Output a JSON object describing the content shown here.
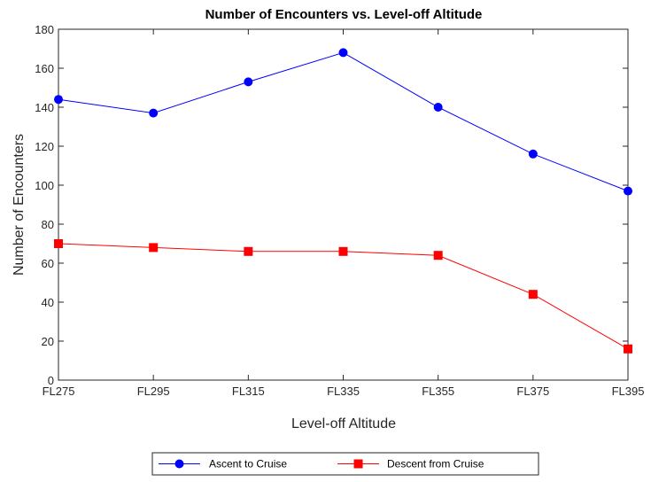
{
  "chart_data": {
    "type": "line",
    "title": "Number of Encounters vs. Level-off Altitude",
    "xlabel": "Level-off Altitude",
    "ylabel": "Number of Encounters",
    "categories": [
      "FL275",
      "FL295",
      "FL315",
      "FL335",
      "FL355",
      "FL375",
      "FL395"
    ],
    "ylim": [
      0,
      180
    ],
    "yticks": [
      0,
      20,
      40,
      60,
      80,
      100,
      120,
      140,
      160,
      180
    ],
    "grid": false,
    "legend_placement": "bottom-center",
    "series": [
      {
        "name": "Ascent to Cruise",
        "color": "#0000ff",
        "marker": "circle",
        "values": [
          144,
          137,
          153,
          168,
          140,
          116,
          97
        ]
      },
      {
        "name": "Descent from Cruise",
        "color": "#ff0000",
        "marker": "square",
        "values": [
          70,
          68,
          66,
          66,
          64,
          44,
          16
        ]
      }
    ]
  }
}
